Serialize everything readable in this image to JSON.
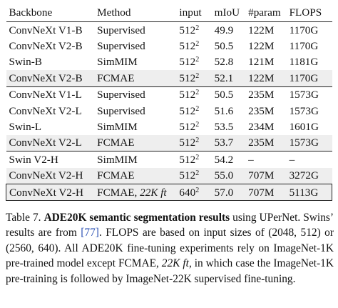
{
  "table": {
    "headers": {
      "backbone": "Backbone",
      "method": "Method",
      "input": "input",
      "miou": "mIoU",
      "param": "#param",
      "flops": "FLOPS"
    },
    "rows": [
      {
        "backbone": "ConvNeXt V1-B",
        "method": "Supervised",
        "method_suffix": "",
        "input_base": "512",
        "input_exp": "2",
        "miou": "49.9",
        "miou_bold": false,
        "param": "122M",
        "flops": "1170G",
        "shaded": false
      },
      {
        "backbone": "ConvNeXt V2-B",
        "method": "Supervised",
        "method_suffix": "",
        "input_base": "512",
        "input_exp": "2",
        "miou": "50.5",
        "miou_bold": false,
        "param": "122M",
        "flops": "1170G",
        "shaded": false
      },
      {
        "backbone": "Swin-B",
        "method": "SimMIM",
        "method_suffix": "",
        "input_base": "512",
        "input_exp": "2",
        "miou": "52.8",
        "miou_bold": true,
        "param": "121M",
        "flops": "1181G",
        "shaded": false
      },
      {
        "backbone": "ConvNeXt V2-B",
        "method": "FCMAE",
        "method_suffix": "",
        "input_base": "512",
        "input_exp": "2",
        "miou": "52.1",
        "miou_bold": false,
        "param": "122M",
        "flops": "1170G",
        "shaded": true
      },
      {
        "backbone": "ConvNeXt V1-L",
        "method": "Supervised",
        "method_suffix": "",
        "input_base": "512",
        "input_exp": "2",
        "miou": "50.5",
        "miou_bold": false,
        "param": "235M",
        "flops": "1573G",
        "shaded": false
      },
      {
        "backbone": "ConvNeXt V2-L",
        "method": "Supervised",
        "method_suffix": "",
        "input_base": "512",
        "input_exp": "2",
        "miou": "51.6",
        "miou_bold": false,
        "param": "235M",
        "flops": "1573G",
        "shaded": false
      },
      {
        "backbone": "Swin-L",
        "method": "SimMIM",
        "method_suffix": "",
        "input_base": "512",
        "input_exp": "2",
        "miou": "53.5",
        "miou_bold": false,
        "param": "234M",
        "flops": "1601G",
        "shaded": false
      },
      {
        "backbone": "ConvNeXt V2-L",
        "method": "FCMAE",
        "method_suffix": "",
        "input_base": "512",
        "input_exp": "2",
        "miou": "53.7",
        "miou_bold": true,
        "param": "235M",
        "flops": "1573G",
        "shaded": true
      },
      {
        "backbone": "Swin V2-H",
        "method": "SimMIM",
        "method_suffix": "",
        "input_base": "512",
        "input_exp": "2",
        "miou": "54.2",
        "miou_bold": false,
        "param": "–",
        "flops": "–",
        "shaded": false
      },
      {
        "backbone": "ConvNeXt V2-H",
        "method": "FCMAE",
        "method_suffix": "",
        "input_base": "512",
        "input_exp": "2",
        "miou": "55.0",
        "miou_bold": true,
        "param": "707M",
        "flops": "3272G",
        "shaded": true
      },
      {
        "backbone": "ConvNeXt V2-H",
        "method": "FCMAE, ",
        "method_suffix": "22K ft",
        "input_base": "640",
        "input_exp": "2",
        "miou": "57.0",
        "miou_bold": true,
        "param": "707M",
        "flops": "5113G",
        "shaded": true
      }
    ]
  },
  "caption": {
    "label": "Table 7.",
    "title": "ADE20K semantic segmentation results",
    "text_1": " using UPerNet. Swins’ results are from ",
    "citation": "[77]",
    "text_2": ". FLOPS are based on input sizes of (2048, 512) or (2560, 640). All ADE20K fine-tuning experiments rely on ImageNet-1K pre-trained model except FCMAE, ",
    "emph": "22K ft",
    "text_3": ", in which case the ImageNet-1K pre-training is followed by ImageNet-22K supervised fine-tuning."
  }
}
